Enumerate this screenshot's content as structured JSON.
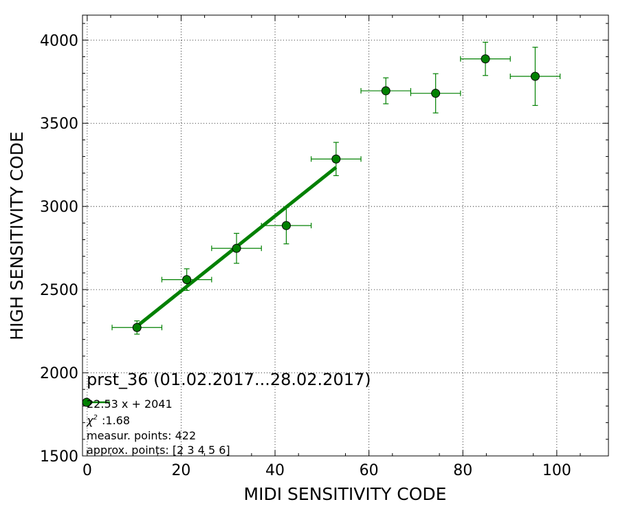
{
  "chart_data": {
    "type": "scatter",
    "title": "",
    "xlabel": "MIDI SENSITIVITY CODE",
    "ylabel": "HIGH SENSITIVITY CODE",
    "xlim": [
      -1,
      111
    ],
    "ylim": [
      1500,
      4150
    ],
    "xticks": [
      0,
      20,
      40,
      60,
      80,
      100
    ],
    "yticks": [
      1500,
      2000,
      2500,
      3000,
      3500,
      4000
    ],
    "x_tick_labels": [
      "0",
      "20",
      "40",
      "60",
      "80",
      "100"
    ],
    "y_tick_labels": [
      "1500",
      "2000",
      "2500",
      "3000",
      "3500",
      "4000"
    ],
    "grid": true,
    "colors": {
      "series": "#008000",
      "marker_edge": "#000000"
    },
    "series": [
      {
        "points": [
          {
            "x": 10.6,
            "y": 2272,
            "xerr": 5.3,
            "yerr": 40
          },
          {
            "x": 21.2,
            "y": 2560,
            "xerr": 5.3,
            "yerr": 65
          },
          {
            "x": 31.8,
            "y": 2748,
            "xerr": 5.3,
            "yerr": 90
          },
          {
            "x": 42.4,
            "y": 2885,
            "xerr": 5.3,
            "yerr": 110
          },
          {
            "x": 53.0,
            "y": 3285,
            "xerr": 5.3,
            "yerr": 100
          },
          {
            "x": 63.6,
            "y": 3695,
            "xerr": 5.3,
            "yerr": 78
          },
          {
            "x": 74.2,
            "y": 3680,
            "xerr": 5.3,
            "yerr": 118
          },
          {
            "x": 84.8,
            "y": 3887,
            "xerr": 5.3,
            "yerr": 100
          },
          {
            "x": 95.4,
            "y": 3782,
            "xerr": 5.3,
            "yerr": 175
          }
        ]
      }
    ],
    "fit_line": {
      "slope": 22.53,
      "intercept": 2041,
      "x_range": [
        10.6,
        53.0
      ]
    },
    "annotation": {
      "title": "prst_36 (01.02.2017...28.02.2017)",
      "equation": "22.53 x + 2041",
      "chi2_label": ":1.68",
      "measur_points": "measur. points: 422",
      "approx_points": "approx. points: [2 3 4 5 6]"
    }
  }
}
